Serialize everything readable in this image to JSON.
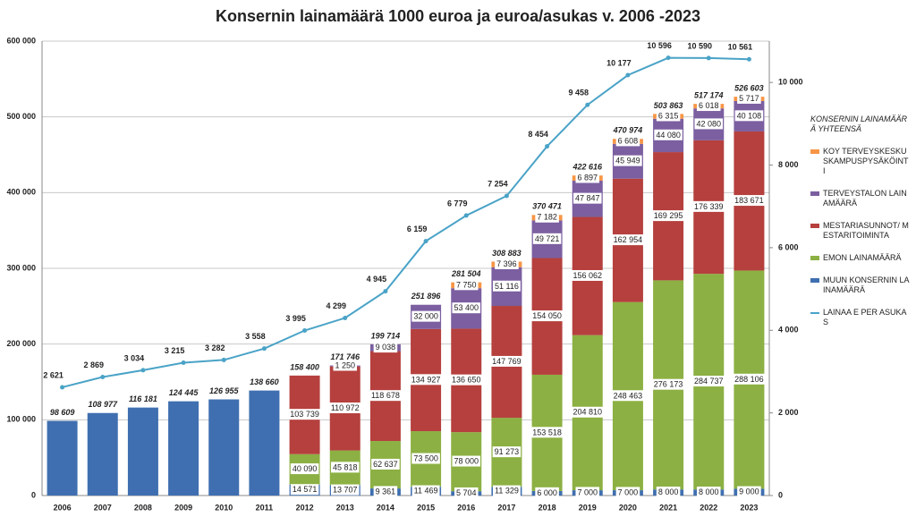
{
  "chart_data": {
    "type": "stacked-bar-line",
    "title": "Konsernin lainamäärä 1000 euroa ja euroa/asukas v. 2006 -2023",
    "categories": [
      "2006",
      "2007",
      "2008",
      "2009",
      "2010",
      "2011",
      "2012",
      "2013",
      "2014",
      "2015",
      "2016",
      "2017",
      "2018",
      "2019",
      "2020",
      "2021",
      "2022",
      "2023"
    ],
    "ylim": [
      0,
      600000
    ],
    "yticks": [
      0,
      {
        "value": 100000,
        "label": "100 000"
      },
      {
        "value": 200000,
        "label": "200 000"
      },
      {
        "value": 300000,
        "label": "300 000"
      },
      {
        "value": 400000,
        "label": "400 000"
      },
      {
        "value": 500000,
        "label": "500 000"
      },
      {
        "value": 600000,
        "label": "600 000"
      }
    ],
    "y2lim": [
      0,
      11000
    ],
    "y2ticks": [
      0,
      {
        "value": 2000,
        "label": "2 000"
      },
      {
        "value": 4000,
        "label": "4 000"
      },
      {
        "value": 6000,
        "label": "6 000"
      },
      {
        "value": 8000,
        "label": "8 000"
      },
      {
        "value": 10000,
        "label": "10 000"
      }
    ],
    "grid": true,
    "legend": "right",
    "series": [
      {
        "name": "MUUN KONSERNIN LAINAMÄÄRÄ",
        "color": "#3f6fb0",
        "values": [
          98609,
          108977,
          116181,
          124445,
          126955,
          138660,
          14571,
          13707,
          9361,
          11469,
          5704,
          11329,
          6000,
          7000,
          7000,
          8000,
          8000,
          9000
        ],
        "value_labels": [
          null,
          null,
          null,
          null,
          null,
          null,
          "14 571",
          "13 707",
          "9 361",
          "11 469",
          "5 704",
          "11 329",
          "6 000",
          "7 000",
          "7 000",
          "8 000",
          "8 000",
          "9 000"
        ]
      },
      {
        "name": "EMON LAINAMÄÄRÄ",
        "color": "#8cb043",
        "values": [
          null,
          null,
          null,
          null,
          null,
          null,
          40090,
          45818,
          62637,
          73500,
          78000,
          91273,
          153518,
          204810,
          248463,
          276173,
          284737,
          288106
        ],
        "value_labels": [
          null,
          null,
          null,
          null,
          null,
          null,
          "40 090",
          "45 818",
          "62 637",
          "73 500",
          "78 000",
          "91 273",
          "153 518",
          "204 810",
          "248 463",
          "276 173",
          "284 737",
          "288 106"
        ]
      },
      {
        "name": "MESTARIASUNNOT/ MESTARITOIMINTA",
        "color": "#b5403e",
        "values": [
          null,
          null,
          null,
          null,
          null,
          null,
          103739,
          110972,
          118678,
          134927,
          136650,
          147769,
          154050,
          156062,
          162954,
          169295,
          176339,
          183671
        ],
        "value_labels": [
          null,
          null,
          null,
          null,
          null,
          null,
          "103 739",
          "110 972",
          "118 678",
          "134 927",
          "136 650",
          "147 769",
          "154 050",
          "156 062",
          "162 954",
          "169 295",
          "176 339",
          "183 671"
        ]
      },
      {
        "name": "TERVEYSTALON LAINAMÄÄRÄ",
        "color": "#7b5fa0",
        "values": [
          null,
          null,
          null,
          null,
          null,
          null,
          null,
          1250,
          9038,
          32000,
          53400,
          51116,
          49721,
          47847,
          45949,
          44080,
          42080,
          40108
        ],
        "value_labels": [
          null,
          null,
          null,
          null,
          null,
          null,
          null,
          "1 250",
          "9 038",
          "32 000",
          "53 400",
          "51 116",
          "49 721",
          "47 847",
          "45 949",
          "44 080",
          "42 080",
          "40 108"
        ]
      },
      {
        "name": "KOY TERVEYSKESKUSKAMPUSPYSÄKÖINTI",
        "color": "#f79646",
        "values": [
          null,
          null,
          null,
          null,
          null,
          null,
          null,
          null,
          null,
          null,
          7750,
          7396,
          7182,
          6897,
          6608,
          6315,
          6018,
          5717
        ],
        "value_labels": [
          null,
          null,
          null,
          null,
          null,
          null,
          null,
          null,
          null,
          null,
          "7 750",
          "7 396",
          "7 182",
          "6 897",
          "6 608",
          "6 315",
          "6 018",
          "5 717"
        ]
      },
      {
        "name": "LAINAA E PER ASUKAS",
        "color": "#4aa3c7",
        "axis": "y2",
        "type": "line",
        "values": [
          2621,
          2869,
          3034,
          3215,
          3282,
          3558,
          3995,
          4299,
          4945,
          6159,
          6779,
          7254,
          8454,
          9458,
          10177,
          10596,
          10590,
          10561
        ],
        "value_labels": [
          "2 621",
          "2 869",
          "3 034",
          "3 215",
          "3 282",
          "3 558",
          "3 995",
          "4 299",
          "4 945",
          "6 159",
          "6 779",
          "7 254",
          "8 454",
          "9 458",
          "10 177",
          "10 596",
          "10 590",
          "10 561"
        ]
      }
    ],
    "total": {
      "name": "KONSERNIN LAINAMÄÄRÄ YHTEENSÄ",
      "values": [
        98609,
        108977,
        116181,
        124445,
        126955,
        138660,
        158400,
        171746,
        199714,
        251896,
        281504,
        308883,
        370471,
        422616,
        470974,
        503863,
        517174,
        526603
      ],
      "value_labels": [
        "98 609",
        "108 977",
        "116 181",
        "124 445",
        "126 955",
        "138 660",
        "158 400",
        "171 746",
        "199 714",
        "251 896",
        "281 504",
        "308 883",
        "370 471",
        "422 616",
        "470 974",
        "503 863",
        "517 174",
        "526 603"
      ]
    }
  }
}
